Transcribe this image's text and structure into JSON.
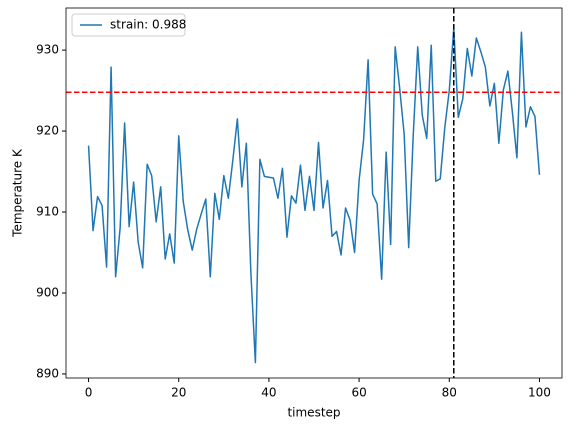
{
  "chart_data": {
    "type": "line",
    "x_label": "timestep",
    "y_label": "Temperature K",
    "x": [
      0,
      1,
      2,
      3,
      4,
      5,
      6,
      7,
      8,
      9,
      10,
      11,
      12,
      13,
      14,
      15,
      16,
      17,
      18,
      19,
      20,
      21,
      22,
      23,
      24,
      25,
      26,
      27,
      28,
      29,
      30,
      31,
      32,
      33,
      34,
      35,
      36,
      37,
      38,
      39,
      40,
      41,
      42,
      43,
      44,
      45,
      46,
      47,
      48,
      49,
      50,
      51,
      52,
      53,
      54,
      55,
      56,
      57,
      58,
      59,
      60,
      61,
      62,
      63,
      64,
      65,
      66,
      67,
      68,
      69,
      70,
      71,
      72,
      73,
      74,
      75,
      76,
      77,
      78,
      79,
      80,
      81,
      82,
      83,
      84,
      85,
      86,
      87,
      88,
      89,
      90,
      91,
      92,
      93,
      94,
      95,
      96,
      97,
      98,
      99,
      100
    ],
    "series": [
      {
        "name": "strain: 0.988",
        "color": "#1f77b4",
        "values": [
          918.2,
          907.7,
          911.9,
          910.8,
          903.2,
          927.9,
          902.0,
          908.0,
          921.0,
          908.2,
          913.7,
          906.3,
          903.1,
          915.9,
          914.5,
          908.8,
          913.1,
          904.2,
          907.3,
          903.7,
          919.4,
          911.3,
          907.8,
          905.3,
          907.9,
          909.8,
          911.6,
          902.0,
          912.3,
          909.1,
          914.5,
          911.7,
          916.4,
          921.5,
          913.1,
          918.5,
          902.5,
          891.4,
          916.5,
          914.4,
          914.3,
          914.2,
          911.7,
          915.4,
          906.9,
          912.0,
          911.1,
          915.8,
          910.2,
          914.4,
          910.2,
          918.6,
          910.5,
          913.9,
          907.0,
          907.6,
          904.7,
          910.5,
          909.0,
          905.0,
          913.9,
          918.9,
          928.8,
          912.2,
          911.0,
          901.7,
          917.4,
          906.0,
          930.4,
          925.3,
          919.6,
          905.6,
          919.4,
          930.4,
          922.0,
          919.1,
          930.6,
          913.8,
          914.1,
          920.4,
          925.0,
          932.7,
          921.7,
          924.0,
          930.2,
          926.8,
          931.5,
          929.8,
          927.9,
          923.1,
          925.9,
          918.5,
          925.1,
          927.4,
          922.3,
          916.7,
          932.2,
          920.5,
          923.0,
          921.8,
          914.6
        ]
      }
    ],
    "reference_lines": [
      {
        "axis": "y",
        "value": 924.8,
        "color": "#ff0000"
      },
      {
        "axis": "x",
        "value": 81,
        "color": "#000000"
      }
    ],
    "xlim": [
      -5,
      105
    ],
    "ylim": [
      889.5,
      935.2
    ],
    "xticks": [
      0,
      20,
      40,
      60,
      80,
      100
    ],
    "yticks": [
      890,
      900,
      910,
      920,
      930
    ],
    "legend": "upper left",
    "grid": false
  }
}
